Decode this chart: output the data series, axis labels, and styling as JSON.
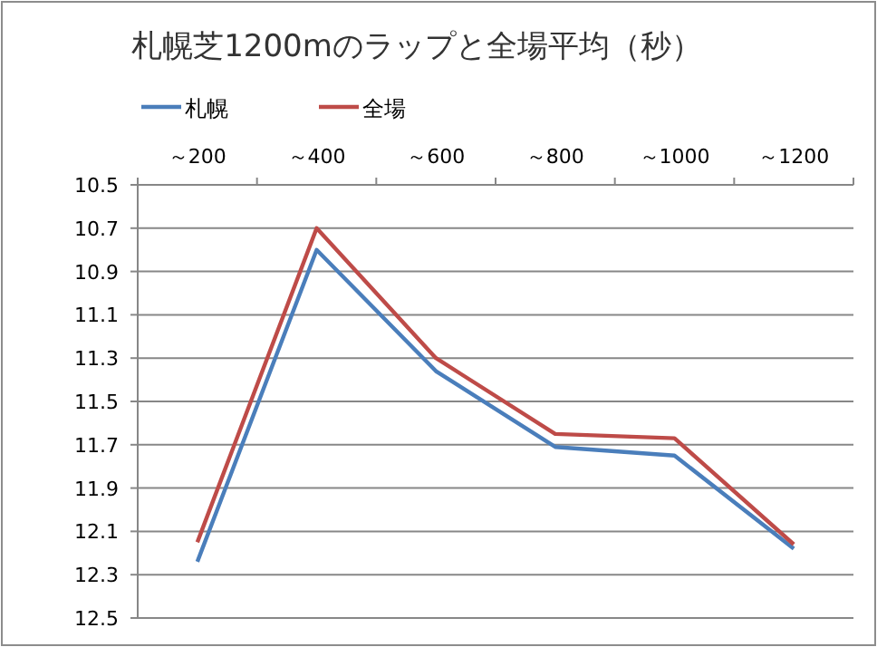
{
  "chart_data": {
    "type": "line",
    "title": "札幌芝1200mのラップと全場平均（秒）",
    "categories": [
      "～200",
      "～400",
      "～600",
      "～800",
      "～1000",
      "～1200"
    ],
    "series": [
      {
        "name": "札幌",
        "color": "#4a7ebb",
        "values": [
          12.24,
          10.8,
          11.36,
          11.71,
          11.75,
          12.18
        ]
      },
      {
        "name": "全場",
        "color": "#be4b48",
        "values": [
          12.15,
          10.7,
          11.3,
          11.65,
          11.67,
          12.16
        ]
      }
    ],
    "ylim": [
      12.5,
      10.5
    ],
    "yticks": [
      10.5,
      10.7,
      10.9,
      11.1,
      11.3,
      11.5,
      11.7,
      11.9,
      12.1,
      12.3,
      12.5
    ],
    "grid": "y",
    "legend": "top left",
    "marker": "none",
    "line_style": "solid"
  }
}
